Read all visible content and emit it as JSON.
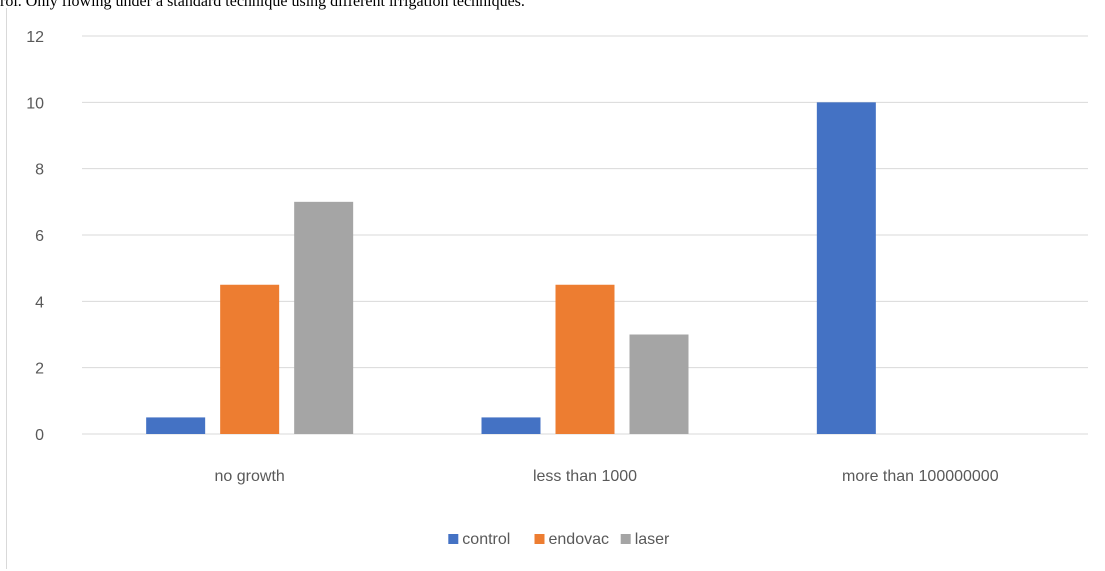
{
  "caption": "rol. Only flowing under a standard technique using different irrigation techniques.",
  "chart_data": {
    "type": "bar",
    "categories": [
      "no growth",
      "less than 1000",
      "more than 100000000"
    ],
    "series": [
      {
        "name": "control",
        "color": "#4472c4",
        "values": [
          0.5,
          0.5,
          10
        ]
      },
      {
        "name": "endovac",
        "color": "#ed7d31",
        "values": [
          4.5,
          4.5,
          0
        ]
      },
      {
        "name": "laser",
        "color": "#a5a5a5",
        "values": [
          7,
          3,
          0
        ]
      }
    ],
    "yticks": [
      0,
      2,
      4,
      6,
      8,
      10,
      12
    ],
    "ylim": [
      0,
      12
    ],
    "grid": true,
    "legend_position": "bottom",
    "title": "",
    "xlabel": "",
    "ylabel": ""
  }
}
